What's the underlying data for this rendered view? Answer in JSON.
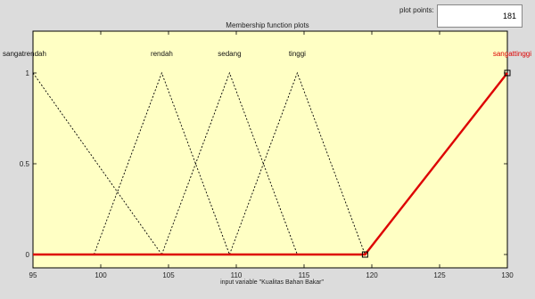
{
  "window": {
    "title": "Membership function plots",
    "points_label": "plot points:",
    "points_value": "181"
  },
  "chart_data": {
    "type": "line",
    "title": "Membership function plots",
    "xlabel": "input variable \"Kualitas Bahan Bakar\"",
    "ylabel": "",
    "xlim": [
      95,
      130
    ],
    "ylim": [
      0,
      1
    ],
    "x_ticks": [
      95,
      100,
      105,
      110,
      115,
      120,
      125,
      130
    ],
    "y_ticks": [
      0,
      0.5,
      1
    ],
    "x_tick_labels": [
      "95",
      "100",
      "105",
      "110",
      "115",
      "120",
      "125",
      "130"
    ],
    "y_tick_labels": [
      "0",
      "0.5",
      "1"
    ],
    "grid": false,
    "selected_color": "#dd0000",
    "line_color": "#000000",
    "background_color": "#ffffc4",
    "series": [
      {
        "name": "sangatrendah",
        "x": [
          95,
          95,
          104.5
        ],
        "y": [
          0,
          1,
          0
        ],
        "selected": false,
        "label_at": 95
      },
      {
        "name": "rendah",
        "x": [
          99.5,
          104.5,
          109.5
        ],
        "y": [
          0,
          1,
          0
        ],
        "selected": false,
        "label_at": 104.5
      },
      {
        "name": "sedang",
        "x": [
          104.5,
          109.5,
          114.5
        ],
        "y": [
          0,
          1,
          0
        ],
        "selected": false,
        "label_at": 109.5
      },
      {
        "name": "tinggi",
        "x": [
          109.5,
          114.5,
          119.5
        ],
        "y": [
          0,
          1,
          0
        ],
        "selected": false,
        "label_at": 114.5
      },
      {
        "name": "sangattinggi",
        "x": [
          95,
          119.5,
          130,
          130
        ],
        "y": [
          0,
          0,
          1,
          1
        ],
        "selected": true,
        "label_at": 130
      }
    ]
  }
}
